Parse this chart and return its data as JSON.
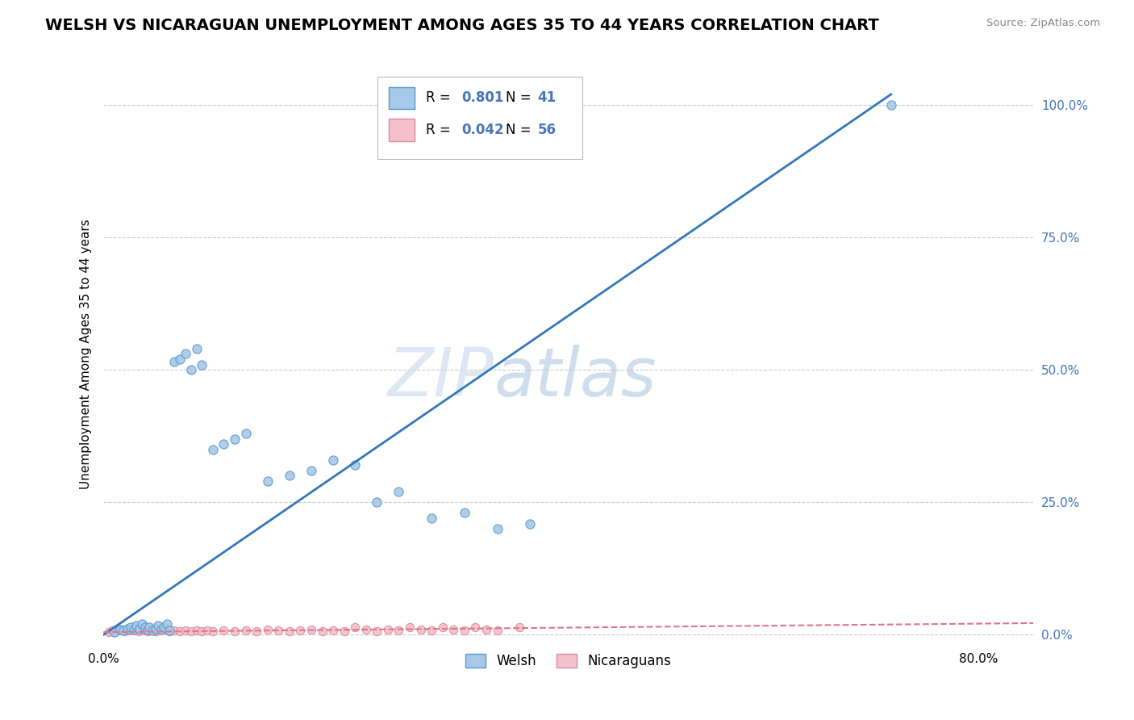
{
  "title": "WELSH VS NICARAGUAN UNEMPLOYMENT AMONG AGES 35 TO 44 YEARS CORRELATION CHART",
  "source": "Source: ZipAtlas.com",
  "ylabel": "Unemployment Among Ages 35 to 44 years",
  "xlim": [
    0.0,
    0.85
  ],
  "ylim": [
    -0.02,
    1.08
  ],
  "yticks": [
    0.0,
    0.25,
    0.5,
    0.75,
    1.0
  ],
  "ytick_labels": [
    "0.0%",
    "25.0%",
    "50.0%",
    "75.0%",
    "100.0%"
  ],
  "xticks": [
    0.0,
    0.8
  ],
  "xtick_labels": [
    "0.0%",
    "80.0%"
  ],
  "welsh_color": "#a8c8e8",
  "welsh_edge_color": "#5599cc",
  "nicaraguan_color": "#f4c0cb",
  "nicaraguan_edge_color": "#dd8899",
  "welsh_R": 0.801,
  "welsh_N": 41,
  "nicaraguan_R": 0.042,
  "nicaraguan_N": 56,
  "welsh_points_x": [
    0.01,
    0.015,
    0.018,
    0.022,
    0.025,
    0.028,
    0.03,
    0.033,
    0.035,
    0.038,
    0.04,
    0.042,
    0.045,
    0.048,
    0.05,
    0.053,
    0.055,
    0.058,
    0.06,
    0.065,
    0.07,
    0.075,
    0.08,
    0.085,
    0.09,
    0.1,
    0.11,
    0.12,
    0.13,
    0.15,
    0.17,
    0.19,
    0.21,
    0.23,
    0.25,
    0.27,
    0.3,
    0.33,
    0.36,
    0.39,
    0.72
  ],
  "welsh_points_y": [
    0.005,
    0.01,
    0.008,
    0.012,
    0.015,
    0.01,
    0.018,
    0.012,
    0.02,
    0.015,
    0.01,
    0.015,
    0.008,
    0.012,
    0.018,
    0.01,
    0.015,
    0.02,
    0.008,
    0.515,
    0.52,
    0.53,
    0.5,
    0.54,
    0.51,
    0.35,
    0.36,
    0.37,
    0.38,
    0.29,
    0.3,
    0.31,
    0.33,
    0.32,
    0.25,
    0.27,
    0.22,
    0.23,
    0.2,
    0.21,
    1.0
  ],
  "nicaraguan_points_x": [
    0.005,
    0.008,
    0.01,
    0.012,
    0.015,
    0.018,
    0.02,
    0.022,
    0.025,
    0.028,
    0.03,
    0.032,
    0.035,
    0.038,
    0.04,
    0.042,
    0.045,
    0.048,
    0.05,
    0.055,
    0.06,
    0.065,
    0.07,
    0.075,
    0.08,
    0.085,
    0.09,
    0.095,
    0.1,
    0.11,
    0.12,
    0.13,
    0.14,
    0.15,
    0.16,
    0.17,
    0.18,
    0.19,
    0.2,
    0.21,
    0.22,
    0.23,
    0.24,
    0.25,
    0.26,
    0.27,
    0.28,
    0.29,
    0.3,
    0.31,
    0.32,
    0.33,
    0.34,
    0.35,
    0.36,
    0.38
  ],
  "nicaraguan_points_y": [
    0.005,
    0.008,
    0.005,
    0.008,
    0.01,
    0.008,
    0.006,
    0.01,
    0.008,
    0.01,
    0.008,
    0.006,
    0.01,
    0.008,
    0.006,
    0.008,
    0.01,
    0.006,
    0.008,
    0.01,
    0.006,
    0.008,
    0.006,
    0.008,
    0.006,
    0.008,
    0.006,
    0.008,
    0.006,
    0.008,
    0.006,
    0.008,
    0.006,
    0.01,
    0.008,
    0.006,
    0.008,
    0.01,
    0.006,
    0.008,
    0.006,
    0.015,
    0.01,
    0.006,
    0.01,
    0.008,
    0.015,
    0.01,
    0.008,
    0.015,
    0.01,
    0.008,
    0.015,
    0.01,
    0.008,
    0.015
  ],
  "welsh_trend_x": [
    0.0,
    0.72
  ],
  "welsh_trend_y": [
    0.0,
    1.02
  ],
  "nicaraguan_trend_x": [
    0.0,
    0.85
  ],
  "nicaraguan_trend_y": [
    0.005,
    0.022
  ],
  "watermark_zip": "ZIP",
  "watermark_atlas": "atlas",
  "background_color": "#ffffff",
  "grid_color": "#cccccc",
  "ytick_color": "#4477bb",
  "title_fontsize": 14,
  "axis_label_fontsize": 11,
  "tick_fontsize": 11,
  "legend_fontsize": 12
}
